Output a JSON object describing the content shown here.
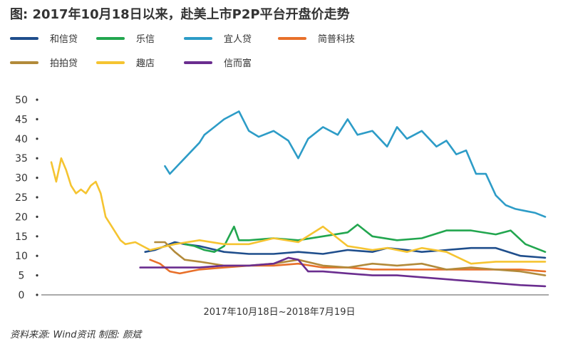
{
  "title": "图: 2017年10月18日以来，赴美上市P2P平台开盘价走势",
  "source_note": "资料来源: Wind资讯    制图: 颜斌",
  "chart_data": {
    "type": "line",
    "xlabel": "2017年10月18日~2018年7月19日",
    "ylabel": "",
    "ylim": [
      0,
      50
    ],
    "yticks": [
      0,
      5,
      10,
      15,
      20,
      25,
      30,
      35,
      40,
      45,
      50
    ],
    "grid": false,
    "legend_position": "top",
    "x_domain": [
      0,
      100
    ],
    "series": [
      {
        "name": "和信贷",
        "color": "#1f4e8c",
        "x": [
          19,
          21,
          23,
          25,
          27,
          30,
          35,
          40,
          45,
          50,
          55,
          60,
          65,
          68,
          72,
          75,
          80,
          85,
          90,
          95,
          100
        ],
        "y": [
          11,
          11.5,
          12.5,
          13.5,
          13,
          12.5,
          11,
          10.5,
          10.5,
          11,
          10.5,
          11.5,
          11,
          12,
          11.5,
          11,
          11.5,
          12,
          12,
          10,
          9.5
        ]
      },
      {
        "name": "乐信",
        "color": "#22a64f",
        "x": [
          27,
          29,
          31,
          33,
          35,
          37,
          38,
          40,
          45,
          50,
          55,
          60,
          62,
          65,
          70,
          75,
          80,
          85,
          90,
          93,
          96,
          100
        ],
        "y": [
          13,
          12.5,
          11.5,
          11,
          12.5,
          17.5,
          14,
          14,
          14.5,
          14,
          15,
          16,
          18,
          15,
          14,
          14.5,
          16.5,
          16.5,
          15.5,
          16.5,
          13,
          11
        ]
      },
      {
        "name": "宜人贷",
        "color": "#2d9cc7",
        "x": [
          23,
          24,
          30,
          31,
          33,
          35,
          38,
          40,
          42,
          45,
          48,
          50,
          52,
          55,
          58,
          60,
          62,
          65,
          68,
          70,
          72,
          75,
          78,
          80,
          82,
          84,
          86,
          88,
          90,
          92,
          94,
          96,
          98,
          100
        ],
        "y": [
          33,
          31,
          39,
          41,
          43,
          45,
          47,
          42,
          40.5,
          42,
          39.5,
          35,
          40,
          43,
          41,
          45,
          41,
          42,
          38,
          43,
          40,
          42,
          38,
          39.5,
          36,
          37,
          31,
          31,
          25.5,
          23,
          22,
          21.5,
          21,
          20
        ]
      },
      {
        "name": "简普科技",
        "color": "#e8702a",
        "x": [
          20,
          22,
          24,
          26,
          28,
          30,
          35,
          40,
          45,
          50,
          55,
          60,
          65,
          70,
          75,
          80,
          85,
          90,
          95,
          100
        ],
        "y": [
          9,
          8,
          6,
          5.5,
          6,
          6.5,
          7,
          7.5,
          7.5,
          8,
          7,
          7,
          6.5,
          6.5,
          6.5,
          6.5,
          6.5,
          6.5,
          6.5,
          6
        ]
      },
      {
        "name": "拍拍贷",
        "color": "#b28a3a",
        "x": [
          21,
          23,
          25,
          27,
          30,
          35,
          40,
          45,
          50,
          55,
          60,
          65,
          70,
          75,
          80,
          85,
          90,
          95,
          100
        ],
        "y": [
          13.5,
          13.5,
          11,
          9,
          8.5,
          7.5,
          7.5,
          8,
          9,
          7.5,
          7,
          8,
          7.5,
          8,
          6.5,
          7,
          6.5,
          6,
          5
        ]
      },
      {
        "name": "趣店",
        "color": "#f5c431",
        "x": [
          0,
          1,
          2,
          3,
          4,
          5,
          6,
          7,
          8,
          9,
          10,
          11,
          12,
          14,
          15,
          17,
          20,
          25,
          30,
          35,
          40,
          45,
          50,
          55,
          60,
          65,
          68,
          72,
          75,
          80,
          85,
          90,
          95,
          100
        ],
        "y": [
          34,
          29,
          35,
          32,
          28,
          26,
          27,
          26,
          28,
          29,
          26,
          20,
          18,
          14,
          13,
          13.5,
          11.5,
          13,
          14,
          13,
          13,
          14.5,
          13.5,
          17.5,
          12.5,
          11.5,
          12,
          11,
          12,
          11,
          8,
          8.5,
          8.5,
          8.5
        ]
      },
      {
        "name": "信而富",
        "color": "#6a2d8f",
        "x": [
          18,
          25,
          30,
          35,
          40,
          45,
          48,
          50,
          52,
          55,
          60,
          65,
          70,
          75,
          80,
          85,
          90,
          95,
          100
        ],
        "y": [
          7,
          7,
          7,
          7.5,
          7.5,
          8,
          9.5,
          9,
          6,
          6,
          5.5,
          5,
          5,
          4.5,
          4,
          3.5,
          3,
          2.5,
          2.2
        ]
      }
    ]
  }
}
